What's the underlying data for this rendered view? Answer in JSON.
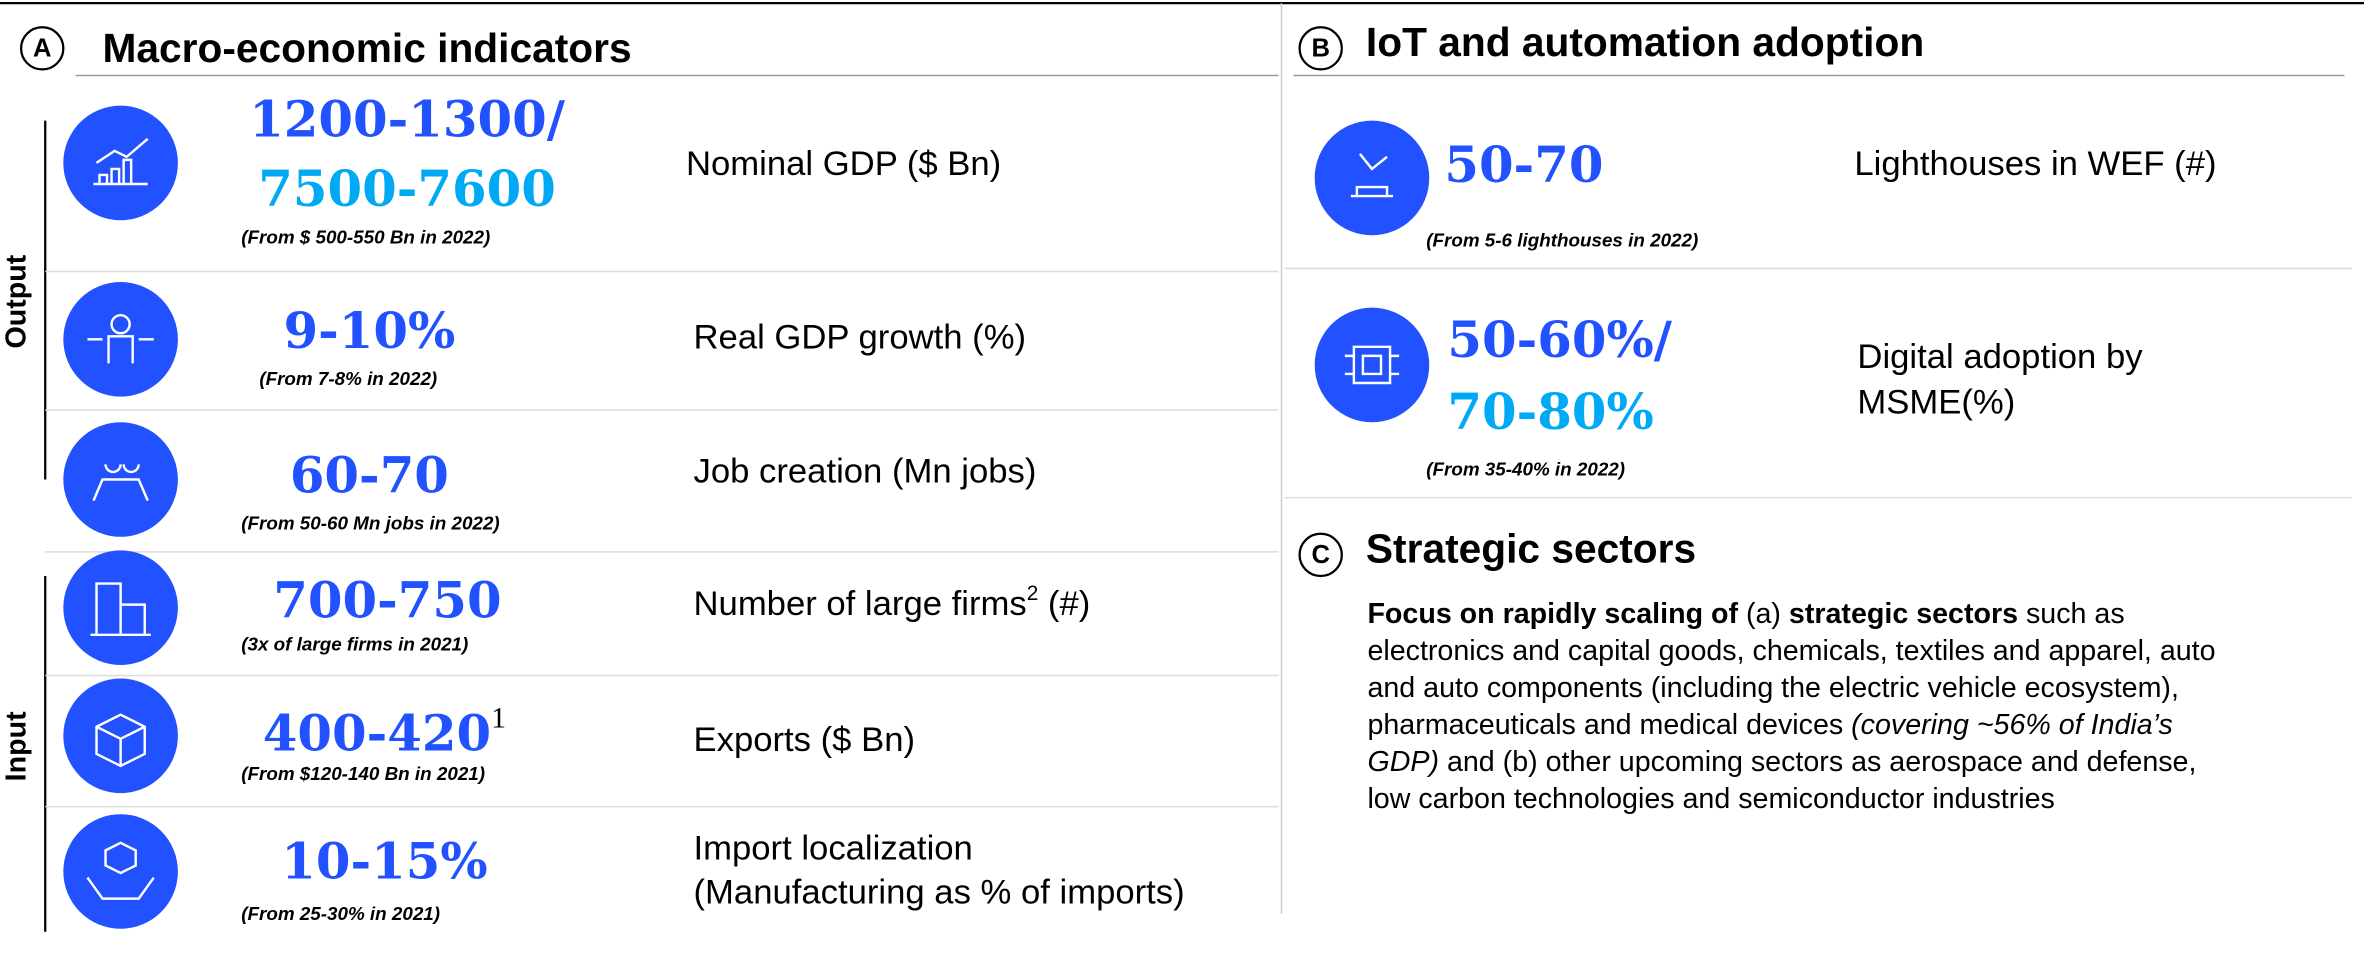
{
  "section_a": {
    "letter": "A",
    "title": "Macro-economic indicators",
    "groups": [
      "Output",
      "Input"
    ],
    "items": [
      {
        "value_lines": [
          "1200-1300/",
          "7500-7600"
        ],
        "note": "(From $ 500-550 Bn in 2022)",
        "label_lines": [
          "Nominal GDP ($ Bn)"
        ]
      },
      {
        "value_lines": [
          "9-10%"
        ],
        "note": "(From 7-8% in 2022)",
        "label_lines": [
          "Real GDP growth (%)"
        ]
      },
      {
        "value_lines": [
          "60-70"
        ],
        "note": "(From 50-60 Mn jobs in 2022)",
        "label_lines": [
          "Job creation (Mn jobs)"
        ]
      },
      {
        "value_lines": [
          "700-750"
        ],
        "note": "(3x of large firms in 2021)",
        "label_lines": [
          "Number of large firms"
        ],
        "label_sup": "2",
        "label_suffix": " (#)"
      },
      {
        "value_lines": [
          "400-420"
        ],
        "value_sup": "1",
        "note": "(From $120-140 Bn in 2021)",
        "label_lines": [
          "Exports ($ Bn)"
        ]
      },
      {
        "value_lines": [
          "10-15%"
        ],
        "note": "(From 25-30% in 2021)",
        "label_lines": [
          "Import localization",
          "(Manufacturing as % of imports)"
        ]
      }
    ]
  },
  "section_b": {
    "letter": "B",
    "title": "IoT and automation adoption",
    "items": [
      {
        "value_lines": [
          "50-70"
        ],
        "note": "(From 5-6 lighthouses in 2022)",
        "label_lines": [
          "Lighthouses in WEF (#)"
        ]
      },
      {
        "value_lines": [
          "50-60%/",
          "70-80%"
        ],
        "note": "(From 35-40% in 2022)",
        "label_lines": [
          "Digital adoption by",
          "MSME(%)"
        ]
      }
    ]
  },
  "section_c": {
    "letter": "C",
    "title": "Strategic sectors",
    "paragraph_lines": [
      [
        {
          "text": "Focus on rapidly scaling of",
          "bold": true
        },
        {
          "text": " (a) "
        },
        {
          "text": "strategic sectors",
          "bold": true
        },
        {
          "text": " such as"
        }
      ],
      [
        {
          "text": "electronics and capital goods, chemicals, textiles and apparel, auto"
        }
      ],
      [
        {
          "text": "and auto components (including the electric vehicle ecosystem),"
        }
      ],
      [
        {
          "text": "pharmaceuticals and medical devices "
        },
        {
          "text": "(covering ~56% of India’s",
          "italic": true
        }
      ],
      [
        {
          "text": "GDP)",
          "italic": true
        },
        {
          "text": " and (b) other upcoming sectors as aerospace and defense,"
        }
      ],
      [
        {
          "text": "low carbon technologies and semiconductor industries"
        }
      ]
    ]
  }
}
